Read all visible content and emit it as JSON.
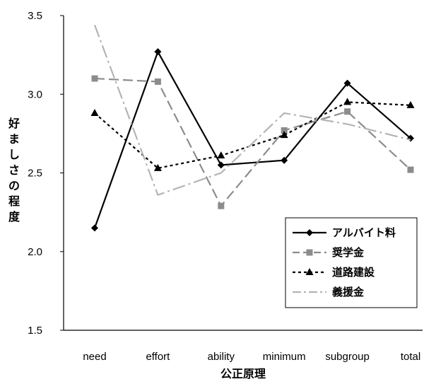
{
  "chart_data": {
    "type": "line",
    "categories": [
      "need",
      "effort",
      "ability",
      "minimum",
      "subgroup",
      "total"
    ],
    "xlabel": "公正原理",
    "ylabel": "好ましさの程度",
    "ylim": [
      1.5,
      3.5
    ],
    "yticks": [
      "1.5",
      "2.0",
      "2.5",
      "3.0",
      "3.5"
    ],
    "grid": false,
    "legend_position": "bottom-right",
    "series": [
      {
        "name": "アルバイト料",
        "values": [
          2.15,
          3.27,
          2.55,
          2.58,
          3.07,
          2.72
        ],
        "color": "#000000",
        "dash": "solid",
        "marker": "diamond"
      },
      {
        "name": "奨学金",
        "values": [
          3.1,
          3.08,
          2.29,
          2.77,
          2.89,
          2.52
        ],
        "color": "#8c8c8c",
        "dash": "long-dash",
        "marker": "square"
      },
      {
        "name": "道路建設",
        "values": [
          2.88,
          2.53,
          2.61,
          2.74,
          2.95,
          2.93
        ],
        "color": "#000000",
        "dash": "dotted",
        "marker": "triangle"
      },
      {
        "name": "義援金",
        "values": [
          3.44,
          2.36,
          2.5,
          2.88,
          2.81,
          2.71
        ],
        "color": "#b4b4b4",
        "dash": "dash-dot",
        "marker": "none"
      }
    ]
  }
}
